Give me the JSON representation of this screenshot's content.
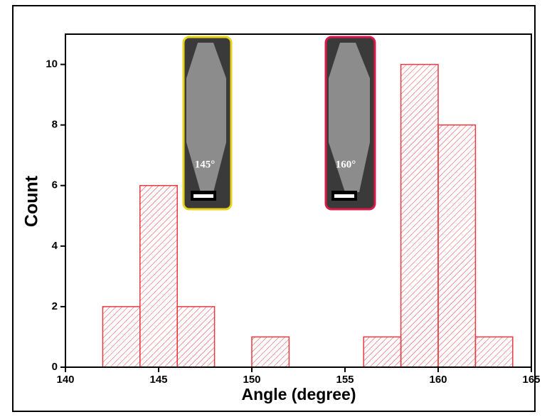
{
  "chart_data": {
    "type": "histogram",
    "x_label": "Angle (degree)",
    "y_label": "Count",
    "bins": [
      142,
      144,
      146,
      148,
      150,
      152,
      154,
      156,
      158,
      160,
      162,
      164
    ],
    "values": [
      2,
      6,
      2,
      0,
      1,
      0,
      0,
      1,
      10,
      8,
      1
    ],
    "color": "#e8393f",
    "xlim": [
      140,
      165
    ],
    "xticks": [
      140,
      145,
      150,
      155,
      160,
      165
    ],
    "ylim": [
      0,
      11
    ],
    "yticks": [
      0,
      2,
      4,
      6,
      8,
      10
    ],
    "annotations": [
      "145°",
      "160°"
    ]
  }
}
